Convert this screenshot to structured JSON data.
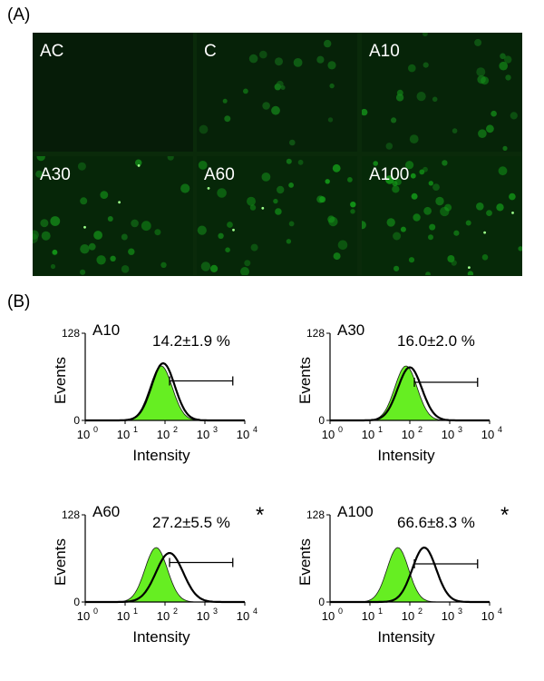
{
  "panel_labels": {
    "a": "(A)",
    "b": "(B)"
  },
  "micrographs": [
    {
      "label": "AC",
      "intensity": 0.0
    },
    {
      "label": "C",
      "intensity": 0.35
    },
    {
      "label": "A10",
      "intensity": 0.45
    },
    {
      "label": "A30",
      "intensity": 0.55
    },
    {
      "label": "A60",
      "intensity": 0.6
    },
    {
      "label": "A100",
      "intensity": 0.7
    }
  ],
  "chart_data": [
    {
      "type": "area",
      "title": "A10",
      "annotation": "14.2±1.9 %",
      "significance": "",
      "xlabel": "Intensity",
      "ylabel": "Events",
      "xscale": "log",
      "xlim": [
        1,
        10000
      ],
      "ylim": [
        0,
        128
      ],
      "xticks": [
        "10",
        "10",
        "10",
        "10",
        "10"
      ],
      "xtick_exponents": [
        "0",
        "1",
        "2",
        "3",
        "4"
      ],
      "yticks": [
        "0",
        "128"
      ],
      "series": [
        {
          "role": "control-filled",
          "peak_x": 80,
          "peak_y": 80,
          "width": 0.28,
          "color": "#66ee22"
        },
        {
          "role": "sample-outline",
          "peak_x": 90,
          "peak_y": 84,
          "width": 0.29,
          "color": "#000000"
        }
      ],
      "gate": {
        "x_start": 130,
        "x_end": 5000,
        "y": 58
      }
    },
    {
      "type": "area",
      "title": "A30",
      "annotation": "16.0±2.0 %",
      "significance": "",
      "xlabel": "Intensity",
      "ylabel": "Events",
      "xscale": "log",
      "xlim": [
        1,
        10000
      ],
      "ylim": [
        0,
        128
      ],
      "xticks": [
        "10",
        "10",
        "10",
        "10",
        "10"
      ],
      "xtick_exponents": [
        "0",
        "1",
        "2",
        "3",
        "4"
      ],
      "yticks": [
        "0",
        "128"
      ],
      "series": [
        {
          "role": "control-filled",
          "peak_x": 80,
          "peak_y": 80,
          "width": 0.28,
          "color": "#66ee22"
        },
        {
          "role": "sample-outline",
          "peak_x": 100,
          "peak_y": 78,
          "width": 0.3,
          "color": "#000000"
        }
      ],
      "gate": {
        "x_start": 130,
        "x_end": 5000,
        "y": 56
      }
    },
    {
      "type": "area",
      "title": "A60",
      "annotation": "27.2±5.5 %",
      "significance": "*",
      "xlabel": "Intensity",
      "ylabel": "Events",
      "xscale": "log",
      "xlim": [
        1,
        10000
      ],
      "ylim": [
        0,
        128
      ],
      "xticks": [
        "10",
        "10",
        "10",
        "10",
        "10"
      ],
      "xtick_exponents": [
        "0",
        "1",
        "2",
        "3",
        "4"
      ],
      "yticks": [
        "0",
        "128"
      ],
      "series": [
        {
          "role": "control-filled",
          "peak_x": 60,
          "peak_y": 80,
          "width": 0.28,
          "color": "#66ee22"
        },
        {
          "role": "sample-outline",
          "peak_x": 130,
          "peak_y": 72,
          "width": 0.34,
          "color": "#000000"
        }
      ],
      "gate": {
        "x_start": 130,
        "x_end": 5000,
        "y": 58
      }
    },
    {
      "type": "area",
      "title": "A100",
      "annotation": "66.6±8.3 %",
      "significance": "*",
      "xlabel": "Intensity",
      "ylabel": "Events",
      "xscale": "log",
      "xlim": [
        1,
        10000
      ],
      "ylim": [
        0,
        128
      ],
      "xticks": [
        "10",
        "10",
        "10",
        "10",
        "10"
      ],
      "xtick_exponents": [
        "0",
        "1",
        "2",
        "3",
        "4"
      ],
      "yticks": [
        "0",
        "128"
      ],
      "series": [
        {
          "role": "control-filled",
          "peak_x": 50,
          "peak_y": 80,
          "width": 0.27,
          "color": "#66ee22"
        },
        {
          "role": "sample-outline",
          "peak_x": 230,
          "peak_y": 80,
          "width": 0.3,
          "color": "#000000"
        }
      ],
      "gate": {
        "x_start": 130,
        "x_end": 5000,
        "y": 56
      }
    }
  ]
}
